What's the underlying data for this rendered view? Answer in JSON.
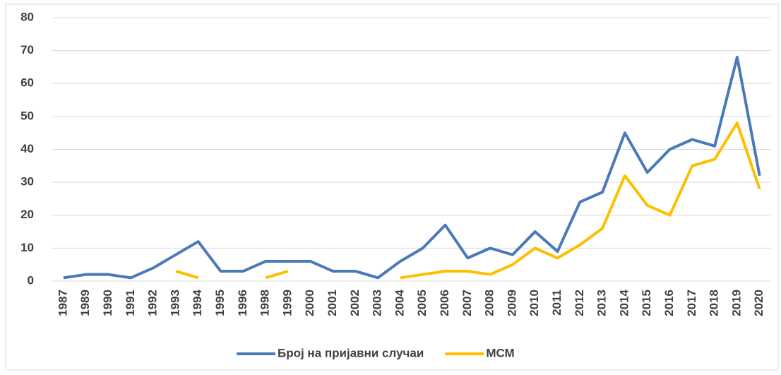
{
  "chart_data": {
    "type": "line",
    "categories": [
      "1987",
      "1989",
      "1990",
      "1991",
      "1992",
      "1993",
      "1994",
      "1995",
      "1996",
      "1998",
      "1999",
      "2000",
      "2001",
      "2002",
      "2003",
      "2004",
      "2005",
      "2006",
      "2007",
      "2008",
      "2009",
      "2010",
      "2011",
      "2012",
      "2013",
      "2014",
      "2015",
      "2016",
      "2017",
      "2018",
      "2019",
      "2020"
    ],
    "series": [
      {
        "name": "Број на пријавни случаи",
        "color": "#4a7ab8",
        "values": [
          1,
          2,
          2,
          1,
          4,
          8,
          12,
          3,
          3,
          6,
          6,
          6,
          3,
          3,
          1,
          6,
          10,
          17,
          7,
          10,
          8,
          15,
          9,
          24,
          27,
          45,
          33,
          40,
          43,
          41,
          68,
          32
        ]
      },
      {
        "name": "МСМ",
        "color": "#fcc000",
        "values": [
          null,
          null,
          null,
          null,
          null,
          3,
          1,
          null,
          null,
          1,
          3,
          null,
          null,
          null,
          null,
          1,
          2,
          3,
          3,
          2,
          5,
          10,
          7,
          11,
          16,
          32,
          23,
          20,
          35,
          37,
          48,
          28
        ]
      }
    ],
    "ylim": [
      0,
      80
    ],
    "yticks": [
      0,
      10,
      20,
      30,
      40,
      50,
      60,
      70,
      80
    ],
    "grid": true,
    "legend": "bottom"
  }
}
